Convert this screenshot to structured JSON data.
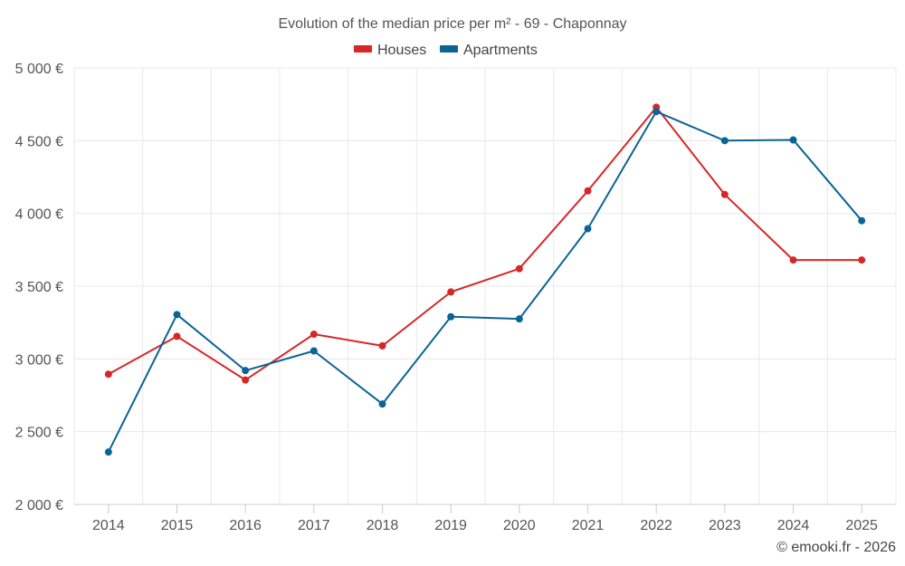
{
  "chart_data": {
    "type": "line",
    "title": "Evolution of the median price per m² - 69 - Chaponnay",
    "categories": [
      "2014",
      "2015",
      "2016",
      "2017",
      "2018",
      "2019",
      "2020",
      "2021",
      "2022",
      "2023",
      "2024",
      "2025"
    ],
    "series": [
      {
        "name": "Houses",
        "color": "#d62728",
        "values": [
          2895,
          3155,
          2855,
          3170,
          3090,
          3460,
          3620,
          4155,
          4730,
          4130,
          3680,
          3680
        ]
      },
      {
        "name": "Apartments",
        "color": "#0a6496",
        "values": [
          2360,
          3305,
          2920,
          3055,
          2690,
          3290,
          3275,
          3895,
          4700,
          4500,
          4505,
          3950
        ]
      }
    ],
    "yticks": [
      {
        "value": 2000,
        "label": "2 000 €"
      },
      {
        "value": 2500,
        "label": "2 500 €"
      },
      {
        "value": 3000,
        "label": "3 000 €"
      },
      {
        "value": 3500,
        "label": "3 500 €"
      },
      {
        "value": 4000,
        "label": "4 000 €"
      },
      {
        "value": 4500,
        "label": "4 500 €"
      },
      {
        "value": 5000,
        "label": "5 000 €"
      }
    ],
    "ylim": [
      2000,
      5000
    ],
    "xlabel": "",
    "ylabel": "",
    "legend_position": "top-center",
    "grid": true
  },
  "credit": "© emooki.fr - 2026"
}
